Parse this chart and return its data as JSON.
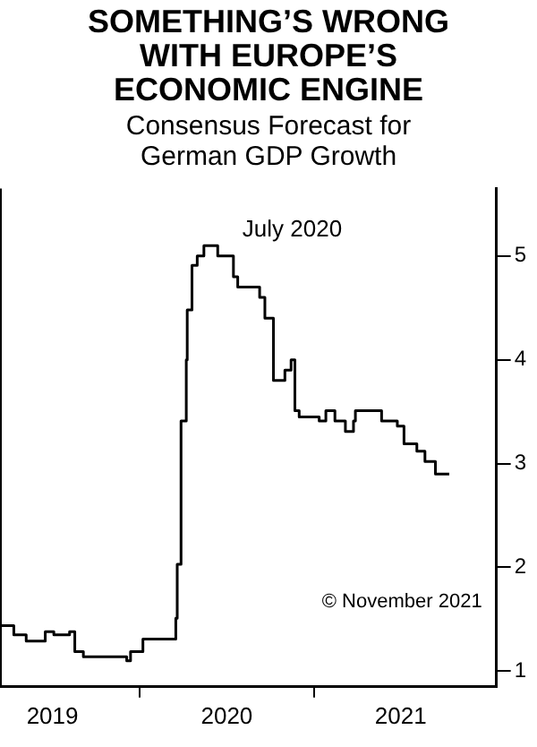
{
  "chart_data": {
    "type": "step",
    "title": "SOMETHING’S WRONG WITH EUROPE’S ECONOMIC ENGINE",
    "subtitle": "Consensus Forecast for German GDP Growth",
    "x": [
      "2019-03-14",
      "2019-04-12",
      "2019-05-08",
      "2019-06-17",
      "2019-07-05",
      "2019-08-07",
      "2019-08-18",
      "2019-09-05",
      "2019-12-05",
      "2019-12-13",
      "2020-01-08",
      "2020-03-17",
      "2020-03-20",
      "2020-03-28",
      "2020-04-08",
      "2020-04-10",
      "2020-04-20",
      "2020-05-01",
      "2020-05-15",
      "2020-06-13",
      "2020-07-16",
      "2020-07-25",
      "2020-09-09",
      "2020-09-20",
      "2020-10-08",
      "2020-11-01",
      "2020-11-14",
      "2020-11-22",
      "2020-12-01",
      "2021-01-12",
      "2021-01-26",
      "2021-02-14",
      "2021-03-08",
      "2021-03-25",
      "2021-03-29",
      "2021-05-23",
      "2021-06-25",
      "2021-07-09",
      "2021-08-05",
      "2021-08-22",
      "2021-09-13",
      "2021-10-01",
      "2021-10-12"
    ],
    "series": [
      {
        "color": "#000000",
        "values": [
          1.25,
          1.44,
          1.35,
          1.29,
          1.38,
          1.35,
          1.38,
          1.19,
          1.14,
          1.1,
          1.19,
          1.31,
          1.51,
          2.03,
          3.41,
          4.0,
          4.48,
          4.91,
          5.0,
          5.1,
          5.0,
          4.8,
          4.7,
          4.6,
          4.4,
          3.8,
          3.9,
          4.0,
          3.51,
          3.45,
          3.41,
          3.51,
          3.41,
          3.31,
          3.41,
          3.51,
          3.41,
          3.36,
          3.19,
          3.12,
          3.02,
          2.9,
          2.9
        ]
      }
    ],
    "xlim": [
      "2019-03-14",
      "2022-01-19"
    ],
    "xticks": [
      {
        "value": "2019-07-02",
        "label": "2019"
      },
      {
        "value": "2020-01-01",
        "label": null
      },
      {
        "value": "2020-07-02",
        "label": "2020"
      },
      {
        "value": "2021-01-01",
        "label": null
      },
      {
        "value": "2021-07-02",
        "label": "2021"
      }
    ],
    "ylim": [
      0.85,
      5.65
    ],
    "yticks": [
      1,
      2,
      3,
      4,
      5
    ],
    "grid": false,
    "legend": false,
    "annotations": [
      {
        "text": "July 2020",
        "x": "2020-07-16",
        "y": 5.1
      },
      "© November 2021"
    ]
  }
}
